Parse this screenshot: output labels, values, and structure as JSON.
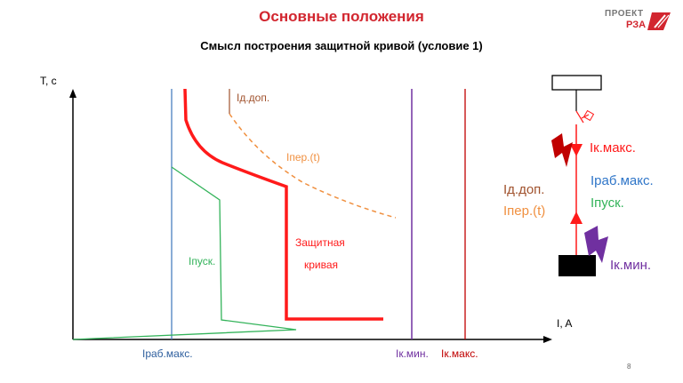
{
  "title": "Основные положения",
  "subtitle": "Смысл построения защитной кривой (условие 1)",
  "logo": {
    "line1": "ПРОЕКТ",
    "line2": "РЗА"
  },
  "axes": {
    "y_label": "T, с",
    "x_label": "I, A"
  },
  "curve_labels": {
    "id_dop": "Iд.доп.",
    "iper": "Iпер.(t)",
    "protect_1": "Защитная",
    "protect_2": "кривая",
    "ipusk": "Iпуск."
  },
  "x_ticks": {
    "irab": "Iраб.макс.",
    "ikmin": "Iк.мин.",
    "ikmax": "Iк.макс."
  },
  "schematic": {
    "ikmax": "Iк.макс.",
    "irab": "Iраб.макс.",
    "ipusk": "Iпуск.",
    "id_dop": "Iд.доп.",
    "iper": "Iпер.(t)",
    "ikmin": "Iк.мин."
  },
  "colors": {
    "red": "#ff1a1a",
    "dark_red": "#c00000",
    "blue": "#4a7fbf",
    "green": "#33b35a",
    "purple": "#7030a0",
    "orange": "#f09040",
    "brown": "#a0522d"
  },
  "page_number": "8"
}
